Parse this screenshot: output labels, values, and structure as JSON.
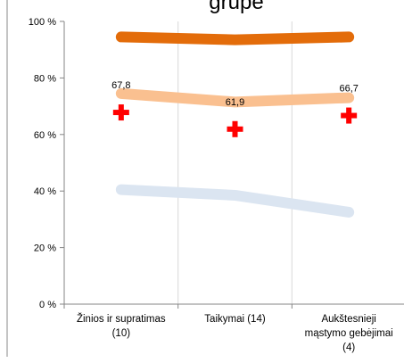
{
  "chart_data": {
    "type": "line",
    "title_fragment": "grupė",
    "categories": [
      [
        "Žinios ir supratimas",
        "(10)"
      ],
      [
        "Taikymai (14)"
      ],
      [
        "Aukštesnieji",
        "mąstymo gebėjimai",
        "(4)"
      ]
    ],
    "ylim": [
      0,
      100
    ],
    "yticks": [
      "0 %",
      "20 %",
      "40 %",
      "60 %",
      "80 %",
      "100 %"
    ],
    "grid": "vertical",
    "legend": "none",
    "series": [
      {
        "values": [
          94.5,
          93.5,
          94.5
        ],
        "color": "#e36c0a",
        "style": "line"
      },
      {
        "values": [
          74.5,
          71.5,
          73.0
        ],
        "color": "#fac090",
        "style": "line"
      },
      {
        "values": [
          40.5,
          38.5,
          32.5
        ],
        "color": "#dbe5f1",
        "style": "line"
      },
      {
        "values": [
          67.8,
          61.9,
          66.7
        ],
        "color": "#ff0000",
        "style": "marker-cross",
        "data_labels": [
          "67,8",
          "61,9",
          "66,7"
        ]
      }
    ]
  }
}
